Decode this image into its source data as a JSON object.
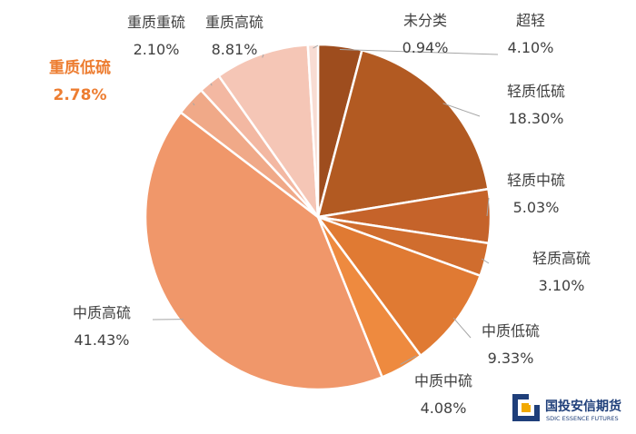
{
  "chart_data": {
    "type": "pie",
    "categories": [
      "超轻",
      "轻质低硫",
      "轻质中硫",
      "轻质高硫",
      "中质低硫",
      "中质中硫",
      "中质高硫",
      "重质低硫",
      "重质重硫",
      "重质高硫",
      "未分类"
    ],
    "values": [
      4.1,
      18.3,
      5.03,
      3.1,
      9.33,
      4.08,
      41.43,
      2.78,
      2.1,
      8.81,
      0.94
    ],
    "value_labels": [
      "4.10%",
      "18.30%",
      "5.03%",
      "3.10%",
      "9.33%",
      "4.08%",
      "41.43%",
      "2.78%",
      "2.10%",
      "8.81%",
      "0.94%"
    ],
    "colors": [
      "#9E4D1E",
      "#B25A22",
      "#C5632A",
      "#D06D2E",
      "#E07A33",
      "#EE8A3F",
      "#F0976A",
      "#F0A988",
      "#F3B8A2",
      "#F5C6B6",
      "#F8DCD3"
    ],
    "highlight": "重质低硫",
    "highlight_color": "#ED7D31",
    "start": "12 o'clock",
    "direction": "clockwise",
    "legend": "none"
  },
  "logo": {
    "name_cn": "国投安信期货",
    "name_en": "SDIC ESSENCE FUTURES",
    "colors": [
      "#1f3f7a",
      "#f2a900"
    ]
  }
}
